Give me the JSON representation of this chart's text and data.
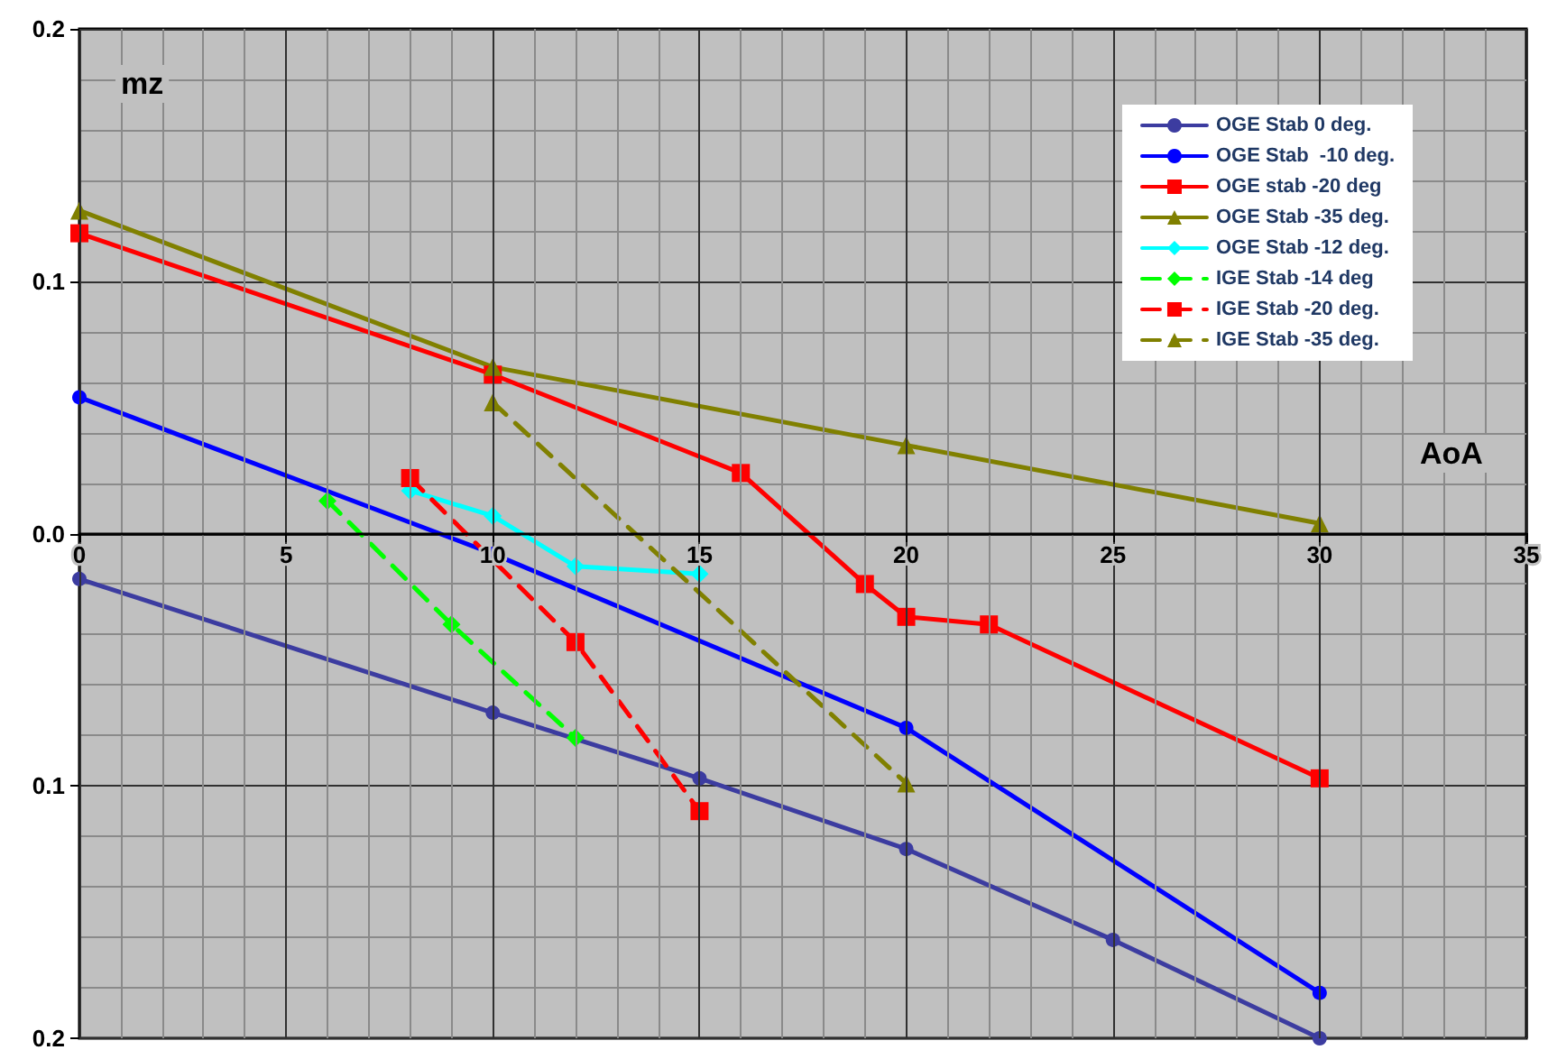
{
  "chart_data": {
    "type": "line",
    "xlabel": "AoA",
    "ylabel": "mz",
    "xlim": [
      0,
      35
    ],
    "xticks": [
      0,
      5,
      10,
      15,
      20,
      25,
      30,
      35
    ],
    "ylim": [
      -0.2,
      0.2
    ],
    "yticks": [
      {
        "value": -0.2,
        "label": "0.2"
      },
      {
        "value": -0.1,
        "label": "0.1"
      },
      {
        "value": 0,
        "label": "0.0"
      },
      {
        "value": 0.1,
        "label": "0.1"
      },
      {
        "value": 0.2,
        "label": "0.2"
      }
    ],
    "grid": true,
    "legend": "top right",
    "series": [
      {
        "name": "OGE Stab 0 deg.",
        "color": "#3c3ca0",
        "marker": "circle",
        "line_style": "solid",
        "x": [
          0,
          10,
          15,
          20,
          25,
          30
        ],
        "values": [
          -0.018,
          -0.071,
          -0.097,
          -0.125,
          -0.161,
          -0.2
        ]
      },
      {
        "name": "OGE Stab  -10 deg.",
        "color": "#0000ff",
        "marker": "circle",
        "line_style": "solid",
        "x": [
          0,
          10,
          20,
          30
        ],
        "values": [
          0.054,
          -0.008,
          -0.077,
          -0.182
        ]
      },
      {
        "name": "OGE stab -20 deg",
        "color": "#ff0000",
        "marker": "square",
        "line_style": "solid",
        "x": [
          0,
          10,
          16,
          19,
          20,
          22,
          30
        ],
        "values": [
          0.119,
          0.063,
          0.024,
          -0.02,
          -0.033,
          -0.036,
          -0.097
        ]
      },
      {
        "name": "OGE Stab -35 deg.",
        "color": "#808000",
        "marker": "triangle",
        "line_style": "solid",
        "x": [
          0,
          10,
          20,
          30
        ],
        "values": [
          0.128,
          0.066,
          0.035,
          0.004
        ]
      },
      {
        "name": "OGE Stab -12 deg.",
        "color": "#00ffff",
        "marker": "diamond",
        "line_style": "solid",
        "x": [
          8,
          10,
          12,
          15
        ],
        "values": [
          0.017,
          0.007,
          -0.013,
          -0.016
        ]
      },
      {
        "name": "IGE Stab -14 deg",
        "color": "#00ff00",
        "marker": "diamond",
        "line_style": "dashed",
        "x": [
          6,
          9,
          12
        ],
        "values": [
          0.013,
          -0.036,
          -0.081
        ]
      },
      {
        "name": "IGE Stab -20 deg.",
        "color": "#ff0000",
        "marker": "square",
        "line_style": "dashed",
        "x": [
          8,
          12,
          15
        ],
        "values": [
          0.022,
          -0.043,
          -0.11
        ]
      },
      {
        "name": "IGE Stab -35 deg.",
        "color": "#808000",
        "marker": "triangle",
        "line_style": "dashed",
        "x": [
          10,
          20
        ],
        "values": [
          0.052,
          -0.099
        ]
      }
    ]
  }
}
